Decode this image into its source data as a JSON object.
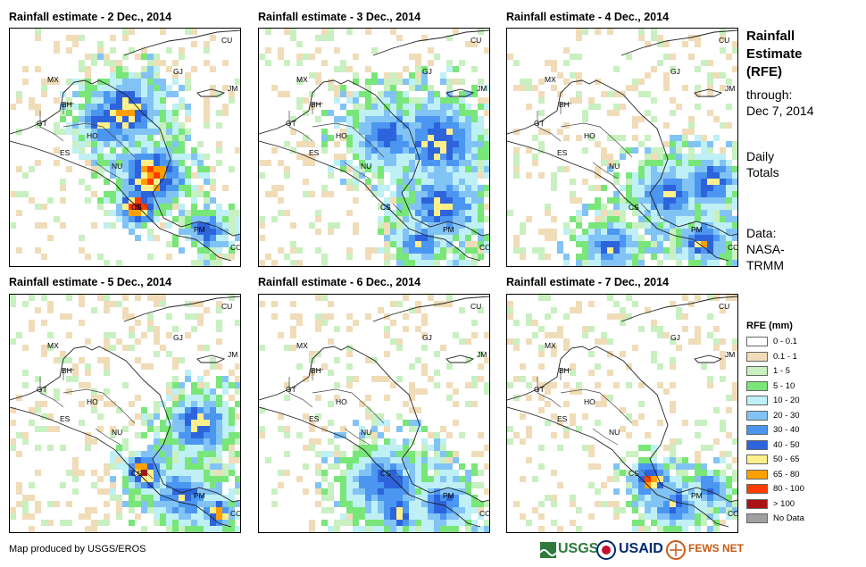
{
  "panels": [
    {
      "title": "Rainfall estimate - 2 Dec., 2014",
      "clusters": [
        [
          0.5,
          0.35,
          0.18,
          4
        ],
        [
          0.62,
          0.62,
          0.16,
          5
        ],
        [
          0.55,
          0.75,
          0.1,
          6
        ],
        [
          0.4,
          0.4,
          0.12,
          3
        ],
        [
          0.85,
          0.85,
          0.1,
          3
        ]
      ]
    },
    {
      "title": "Rainfall estimate - 3 Dec., 2014",
      "clusters": [
        [
          0.78,
          0.48,
          0.22,
          3
        ],
        [
          0.8,
          0.75,
          0.18,
          3
        ],
        [
          0.55,
          0.45,
          0.18,
          2
        ],
        [
          0.7,
          0.9,
          0.12,
          2
        ]
      ]
    },
    {
      "title": "Rainfall estimate - 4 Dec., 2014",
      "clusters": [
        [
          0.7,
          0.7,
          0.18,
          2
        ],
        [
          0.88,
          0.65,
          0.14,
          3
        ],
        [
          0.85,
          0.9,
          0.12,
          3
        ],
        [
          0.45,
          0.92,
          0.14,
          2
        ]
      ]
    },
    {
      "title": "Rainfall estimate - 5 Dec., 2014",
      "clusters": [
        [
          0.82,
          0.55,
          0.16,
          3
        ],
        [
          0.58,
          0.75,
          0.1,
          5
        ],
        [
          0.75,
          0.85,
          0.16,
          2
        ],
        [
          0.9,
          0.92,
          0.08,
          5
        ]
      ]
    },
    {
      "title": "Rainfall estimate - 6 Dec., 2014",
      "clusters": [
        [
          0.55,
          0.8,
          0.2,
          2
        ],
        [
          0.8,
          0.88,
          0.14,
          2
        ],
        [
          0.6,
          0.92,
          0.1,
          3
        ]
      ]
    },
    {
      "title": "Rainfall estimate - 7 Dec., 2014",
      "clusters": [
        [
          0.62,
          0.78,
          0.1,
          5
        ],
        [
          0.72,
          0.88,
          0.14,
          2
        ],
        [
          0.88,
          0.82,
          0.1,
          2
        ]
      ]
    }
  ],
  "country_labels": [
    "CU",
    "MX",
    "GJ",
    "JM",
    "BH",
    "GT",
    "HO",
    "ES",
    "NU",
    "CS",
    "PM",
    "CO"
  ],
  "side_text": {
    "title1": "Rainfall",
    "title2": "Estimate",
    "title3": "(RFE)",
    "through": "through:",
    "date": "Dec 7, 2014",
    "daily1": "Daily",
    "daily2": "Totals",
    "data1": "Data:",
    "data2": "NASA-",
    "data3": "TRMM"
  },
  "legend": {
    "title": "RFE (mm)",
    "items": [
      {
        "label": "0 - 0.1",
        "color": "#ffffff"
      },
      {
        "label": "0.1 - 1",
        "color": "#f0dcb8"
      },
      {
        "label": "1 - 5",
        "color": "#c8f0c0"
      },
      {
        "label": "5 - 10",
        "color": "#78e678"
      },
      {
        "label": "10 - 20",
        "color": "#bef0f5"
      },
      {
        "label": "20 - 30",
        "color": "#82c3f5"
      },
      {
        "label": "30 - 40",
        "color": "#4b96f0"
      },
      {
        "label": "40 - 50",
        "color": "#2d64dc"
      },
      {
        "label": "50 - 65",
        "color": "#fff08c"
      },
      {
        "label": "65 - 80",
        "color": "#ffa000"
      },
      {
        "label": "80 - 100",
        "color": "#ff3c00"
      },
      {
        "label": "> 100",
        "color": "#aa1414"
      },
      {
        "label": "No Data",
        "color": "#a0a0a0"
      }
    ]
  },
  "footer": "Map produced by USGS/EROS",
  "logos": {
    "usgs": "USGS",
    "usaid": "USAID",
    "fews": "FEWS NET"
  }
}
